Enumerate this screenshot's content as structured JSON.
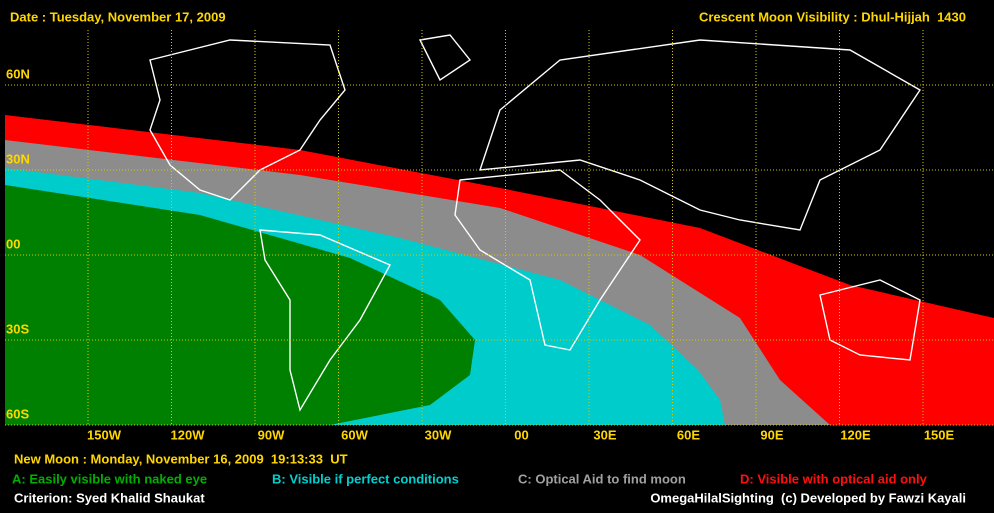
{
  "header": {
    "date": "Date : Tuesday, November 17, 2009",
    "title": "Crescent Moon Visibility : Dhul-Hijjah  1430"
  },
  "map": {
    "lat_labels": [
      "60N",
      "30N",
      "00",
      "30S",
      "60S"
    ],
    "lon_labels": [
      "150W",
      "120W",
      "90W",
      "60W",
      "30W",
      "00",
      "30E",
      "60E",
      "90E",
      "120E",
      "150E"
    ]
  },
  "footer": {
    "new_moon": "New Moon : Monday, November 16, 2009  19:13:33  UT",
    "legend": [
      "A: Easily visible with naked eye",
      "B: Visible if perfect conditions",
      "C: Optical Aid to find moon",
      "D: Visible with optical aid only"
    ],
    "criterion": "Criterion: Syed Khalid Shaukat",
    "credit": "OmegaHilalSighting  (c) Developed by Fawzi Kayali"
  }
}
